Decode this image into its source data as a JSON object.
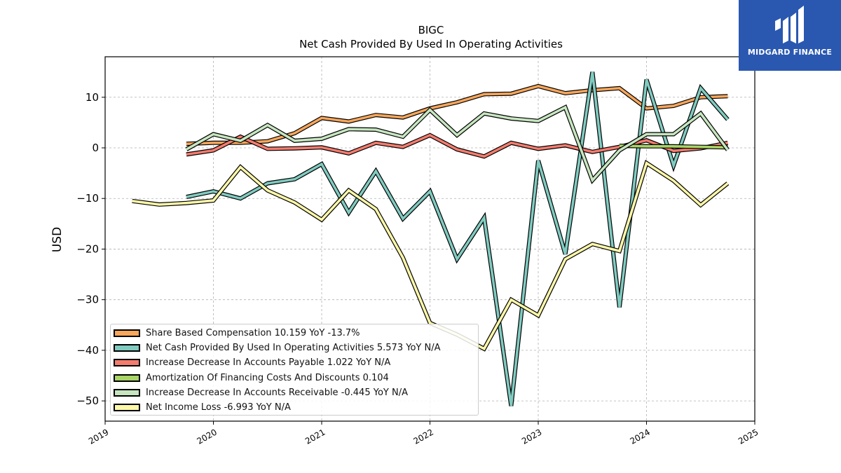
{
  "logo": {
    "name": "MIDGARD FINANCE"
  },
  "chart_data": {
    "type": "line",
    "title": "BIGC",
    "subtitle": "Net Cash Provided By Used In Operating Activities",
    "ylabel": "USD",
    "xlabel": "",
    "xlim": [
      2019.0,
      2025.0
    ],
    "ylim": [
      -54,
      18
    ],
    "x_ticks": [
      2019,
      2020,
      2021,
      2022,
      2023,
      2024,
      2025
    ],
    "y_ticks": [
      10,
      0,
      -10,
      -20,
      -30,
      -40,
      -50
    ],
    "y_tick_labels": [
      "10",
      "0",
      "−10",
      "−20",
      "−30",
      "−40",
      "−50"
    ],
    "grid": true,
    "legend_position": "lower-left",
    "series": [
      {
        "name": "Share Based Compensation",
        "legend_label": "Share Based Compensation  10.159 YoY -13.7%",
        "color": "#f7a65b",
        "points": [
          [
            2019.75,
            0.8
          ],
          [
            2020.0,
            1.0
          ],
          [
            2020.25,
            1.0
          ],
          [
            2020.5,
            1.3
          ],
          [
            2020.75,
            2.9
          ],
          [
            2021.0,
            5.9
          ],
          [
            2021.25,
            5.2
          ],
          [
            2021.5,
            6.5
          ],
          [
            2021.75,
            6.0
          ],
          [
            2022.0,
            7.8
          ],
          [
            2022.25,
            9.0
          ],
          [
            2022.5,
            10.6
          ],
          [
            2022.75,
            10.7
          ],
          [
            2023.0,
            12.2
          ],
          [
            2023.25,
            10.8
          ],
          [
            2023.5,
            11.4
          ],
          [
            2023.75,
            11.8
          ],
          [
            2024.0,
            7.8
          ],
          [
            2024.25,
            8.3
          ],
          [
            2024.5,
            10.0
          ],
          [
            2024.75,
            10.2
          ]
        ]
      },
      {
        "name": "Net Cash Provided By Used In Operating Activities",
        "legend_label": "Net Cash Provided By Used In Operating Activities  5.573 YoY N/A",
        "color": "#80cbc0",
        "points": [
          [
            2019.75,
            -9.7
          ],
          [
            2020.0,
            -8.6
          ],
          [
            2020.25,
            -10.0
          ],
          [
            2020.5,
            -7.0
          ],
          [
            2020.75,
            -6.2
          ],
          [
            2021.0,
            -3.2
          ],
          [
            2021.25,
            -12.8
          ],
          [
            2021.5,
            -4.6
          ],
          [
            2021.75,
            -14.0
          ],
          [
            2022.0,
            -8.6
          ],
          [
            2022.25,
            -22.0
          ],
          [
            2022.5,
            -13.8
          ],
          [
            2022.75,
            -51.0
          ],
          [
            2023.0,
            -2.5
          ],
          [
            2023.25,
            -21.0
          ],
          [
            2023.5,
            15.0
          ],
          [
            2023.75,
            -31.5
          ],
          [
            2024.0,
            13.5
          ],
          [
            2024.25,
            -3.5
          ],
          [
            2024.5,
            11.8
          ],
          [
            2024.75,
            5.6
          ]
        ]
      },
      {
        "name": "Increase Decrease In Accounts Payable",
        "legend_label": "Increase Decrease In Accounts Payable  1.022 YoY N/A",
        "color": "#f47c6e",
        "points": [
          [
            2019.75,
            -1.3
          ],
          [
            2020.0,
            -0.5
          ],
          [
            2020.25,
            2.2
          ],
          [
            2020.5,
            -0.2
          ],
          [
            2020.75,
            -0.1
          ],
          [
            2021.0,
            0.1
          ],
          [
            2021.25,
            -1.1
          ],
          [
            2021.5,
            1.0
          ],
          [
            2021.75,
            0.2
          ],
          [
            2022.0,
            2.5
          ],
          [
            2022.25,
            -0.3
          ],
          [
            2022.5,
            -1.7
          ],
          [
            2022.75,
            1.0
          ],
          [
            2023.0,
            -0.2
          ],
          [
            2023.25,
            0.5
          ],
          [
            2023.5,
            -0.8
          ],
          [
            2023.75,
            0.2
          ],
          [
            2024.0,
            1.5
          ],
          [
            2024.25,
            -0.6
          ],
          [
            2024.5,
            -0.1
          ],
          [
            2024.75,
            1.0
          ]
        ]
      },
      {
        "name": "Amortization Of Financing Costs And Discounts",
        "legend_label": "Amortization Of Financing Costs And Discounts  0.104",
        "color": "#a9d466",
        "points": [
          [
            2023.75,
            0.4
          ],
          [
            2024.0,
            0.3
          ],
          [
            2024.25,
            0.3
          ],
          [
            2024.5,
            0.2
          ],
          [
            2024.75,
            0.1
          ]
        ]
      },
      {
        "name": "Increase Decrease In Accounts Receivable",
        "legend_label": "Increase Decrease In Accounts Receivable  -0.445 YoY N/A",
        "color": "#c7e6c0",
        "points": [
          [
            2019.75,
            -0.3
          ],
          [
            2020.0,
            2.7
          ],
          [
            2020.25,
            1.4
          ],
          [
            2020.5,
            4.5
          ],
          [
            2020.75,
            1.4
          ],
          [
            2021.0,
            1.8
          ],
          [
            2021.25,
            3.7
          ],
          [
            2021.5,
            3.6
          ],
          [
            2021.75,
            2.2
          ],
          [
            2022.0,
            7.5
          ],
          [
            2022.25,
            2.5
          ],
          [
            2022.5,
            6.8
          ],
          [
            2022.75,
            5.8
          ],
          [
            2023.0,
            5.3
          ],
          [
            2023.25,
            8.0
          ],
          [
            2023.5,
            -6.4
          ],
          [
            2023.75,
            -0.5
          ],
          [
            2024.0,
            2.7
          ],
          [
            2024.25,
            2.7
          ],
          [
            2024.5,
            6.8
          ],
          [
            2024.75,
            -0.4
          ]
        ]
      },
      {
        "name": "Net Income Loss",
        "legend_label": "Net Income Loss  -6.993 YoY N/A",
        "color": "#fdf8a8",
        "points": [
          [
            2019.25,
            -10.5
          ],
          [
            2019.5,
            -11.2
          ],
          [
            2019.75,
            -10.9
          ],
          [
            2020.0,
            -10.4
          ],
          [
            2020.25,
            -3.8
          ],
          [
            2020.5,
            -8.4
          ],
          [
            2020.75,
            -10.8
          ],
          [
            2021.0,
            -14.2
          ],
          [
            2021.25,
            -8.4
          ],
          [
            2021.5,
            -12.1
          ],
          [
            2021.75,
            -21.7
          ],
          [
            2022.0,
            -34.6
          ],
          [
            2022.25,
            -36.9
          ],
          [
            2022.5,
            -39.7
          ],
          [
            2022.75,
            -30.0
          ],
          [
            2023.0,
            -33.1
          ],
          [
            2023.25,
            -22.0
          ],
          [
            2023.5,
            -19.0
          ],
          [
            2023.75,
            -20.4
          ],
          [
            2024.0,
            -3.0
          ],
          [
            2024.25,
            -6.5
          ],
          [
            2024.5,
            -11.3
          ],
          [
            2024.75,
            -7.0
          ]
        ]
      }
    ]
  }
}
